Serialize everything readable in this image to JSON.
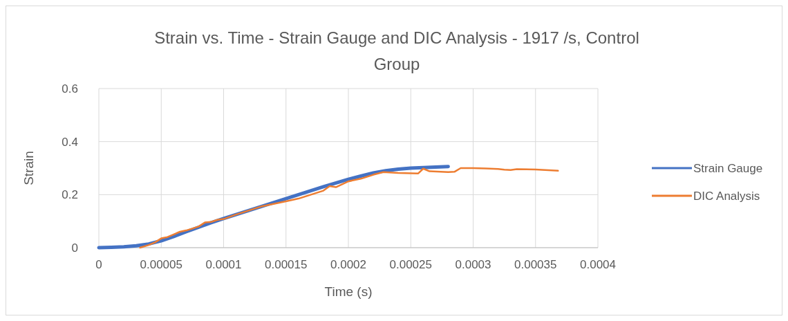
{
  "chart_data": {
    "type": "line",
    "title": "Strain vs. Time - Strain Gauge and DIC Analysis - 1917 /s, Control Group",
    "xlabel": "Time (s)",
    "ylabel": "Strain",
    "xlim": [
      0,
      0.0004
    ],
    "xticks": [
      0,
      {
        "value": 5e-05,
        "label": "0.00005"
      },
      {
        "value": 0.0001,
        "label": "0.0001"
      },
      {
        "value": 0.00015,
        "label": "0.00015"
      },
      {
        "value": 0.0002,
        "label": "0.0002"
      },
      {
        "value": 0.00025,
        "label": "0.00025"
      },
      {
        "value": 0.0003,
        "label": "0.0003"
      },
      {
        "value": 0.00035,
        "label": "0.00035"
      },
      {
        "value": 0.0004,
        "label": "0.0004"
      }
    ],
    "ylim": [
      0,
      0.6
    ],
    "yticks": [
      0,
      0.2,
      0.4,
      0.6
    ],
    "grid": true,
    "legend": "right",
    "marker": "none",
    "line_style": "solid",
    "series": [
      {
        "name": "Strain Gauge",
        "color": "#4472c4",
        "x": [
          0,
          1e-05,
          2e-05,
          3e-05,
          4e-05,
          5e-05,
          6e-05,
          7e-05,
          8e-05,
          9e-05,
          0.0001,
          0.00012,
          0.00014,
          0.00016,
          0.00018,
          0.0002,
          0.00021,
          0.00022,
          0.00023,
          0.00024,
          0.00025,
          0.00026,
          0.00028
        ],
        "values": [
          0,
          0.001,
          0.003,
          0.007,
          0.014,
          0.026,
          0.042,
          0.06,
          0.077,
          0.094,
          0.11,
          0.14,
          0.17,
          0.2,
          0.23,
          0.258,
          0.27,
          0.282,
          0.29,
          0.296,
          0.3,
          0.302,
          0.306
        ]
      },
      {
        "name": "DIC Analysis",
        "color": "#ed7d31",
        "x": [
          3.3e-05,
          4e-05,
          4.5e-05,
          5e-05,
          5.5e-05,
          6e-05,
          6.5e-05,
          7e-05,
          7.5e-05,
          8e-05,
          8.5e-05,
          9e-05,
          9.5e-05,
          0.0001,
          0.00011,
          0.00012,
          0.00013,
          0.00014,
          0.00015,
          0.00016,
          0.00017,
          0.00018,
          0.000185,
          0.00019,
          0.0002,
          0.00021,
          0.00022,
          0.000228,
          0.00024,
          0.000256,
          0.00026,
          0.000265,
          0.00028,
          0.000285,
          0.00029,
          0.0003,
          0.00031,
          0.00032,
          0.000325,
          0.00033,
          0.000335,
          0.00035,
          0.000368
        ],
        "values": [
          0,
          0.01,
          0.02,
          0.035,
          0.04,
          0.05,
          0.06,
          0.065,
          0.072,
          0.08,
          0.095,
          0.097,
          0.105,
          0.108,
          0.125,
          0.14,
          0.155,
          0.165,
          0.175,
          0.185,
          0.2,
          0.215,
          0.232,
          0.228,
          0.25,
          0.26,
          0.275,
          0.285,
          0.282,
          0.28,
          0.298,
          0.288,
          0.285,
          0.286,
          0.3,
          0.3,
          0.299,
          0.297,
          0.294,
          0.293,
          0.296,
          0.295,
          0.29
        ]
      }
    ]
  }
}
